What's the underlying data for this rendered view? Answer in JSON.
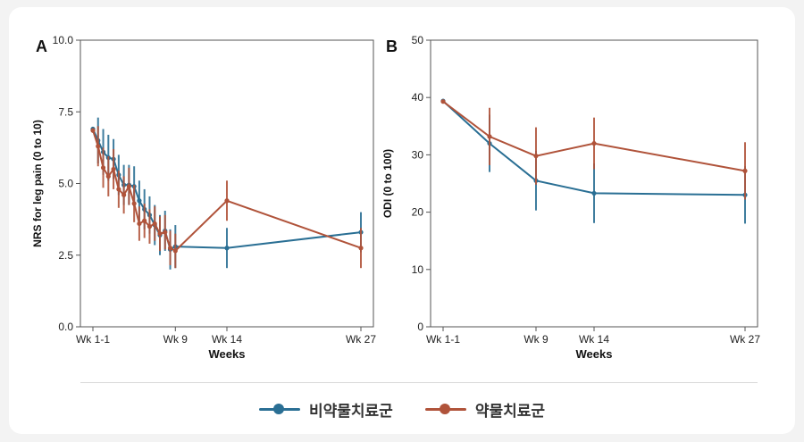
{
  "colors": {
    "nonDrug": "#2a6f94",
    "drug": "#b0533a",
    "axis": "#555555",
    "text": "#222222"
  },
  "legend": [
    {
      "name": "비약물치료군",
      "color": "#2a6f94"
    },
    {
      "name": "약물치료군",
      "color": "#b0533a"
    }
  ],
  "chart_data": [
    {
      "panel": "A",
      "type": "line",
      "xlabel": "Weeks",
      "ylabel": "NRS for leg pain (0 to 10)",
      "ylim": [
        0,
        10
      ],
      "yticks": [
        0,
        2.5,
        5,
        7.5,
        10
      ],
      "ytick_labels": [
        "0.0",
        "2.5",
        "5.0",
        "7.5",
        "10.0"
      ],
      "xlim": [
        1,
        27
      ],
      "xticks": [
        1,
        9,
        14,
        27
      ],
      "xtick_labels": [
        "Wk 1-1",
        "Wk 9",
        "Wk 14",
        "Wk 27"
      ],
      "series": [
        {
          "name": "비약물치료군",
          "color": "#2a6f94",
          "x": [
            1,
            1.5,
            2,
            2.5,
            3,
            3.5,
            4,
            4.5,
            5,
            5.5,
            6,
            6.5,
            7,
            7.5,
            8,
            8.5,
            9,
            14,
            27
          ],
          "y": [
            6.9,
            6.5,
            6.1,
            5.9,
            5.85,
            5.3,
            4.95,
            4.95,
            4.9,
            4.4,
            4.1,
            3.9,
            3.55,
            3.2,
            3.35,
            2.7,
            2.8,
            2.75,
            3.3
          ],
          "err": [
            0.08,
            0.8,
            0.8,
            0.8,
            0.7,
            0.7,
            0.7,
            0.7,
            0.7,
            0.7,
            0.7,
            0.65,
            0.7,
            0.7,
            0.7,
            0.7,
            0.75,
            0.7,
            0.7
          ]
        },
        {
          "name": "약물치료군",
          "color": "#b0533a",
          "x": [
            1,
            1.5,
            2,
            2.5,
            3,
            3.5,
            4,
            4.5,
            5,
            5.5,
            6,
            6.5,
            7,
            7.5,
            8,
            8.5,
            9,
            14,
            27
          ],
          "y": [
            6.85,
            6.3,
            5.55,
            5.25,
            5.5,
            4.8,
            4.6,
            4.9,
            4.3,
            3.6,
            3.7,
            3.5,
            3.6,
            3.25,
            3.3,
            2.75,
            2.65,
            4.4,
            2.75
          ],
          "err": [
            0.08,
            0.7,
            0.7,
            0.7,
            0.7,
            0.65,
            0.65,
            0.65,
            0.65,
            0.6,
            0.6,
            0.6,
            0.6,
            0.6,
            0.6,
            0.6,
            0.6,
            0.7,
            0.7
          ]
        }
      ]
    },
    {
      "panel": "B",
      "type": "line",
      "xlabel": "Weeks",
      "ylabel": "ODI (0 to 100)",
      "ylim": [
        0,
        50
      ],
      "yticks": [
        0,
        10,
        20,
        30,
        40,
        50
      ],
      "ytick_labels": [
        "0",
        "10",
        "20",
        "30",
        "40",
        "50"
      ],
      "xlim": [
        1,
        27
      ],
      "xticks": [
        1,
        9,
        14,
        27
      ],
      "xtick_labels": [
        "Wk 1-1",
        "Wk 9",
        "Wk 14",
        "Wk 27"
      ],
      "series": [
        {
          "name": "비약물치료군",
          "color": "#2a6f94",
          "x": [
            1,
            5,
            9,
            14,
            27
          ],
          "y": [
            39.4,
            32.0,
            25.5,
            23.3,
            23.0
          ],
          "err": [
            0.3,
            5.0,
            5.2,
            5.2,
            5.0
          ]
        },
        {
          "name": "약물치료군",
          "color": "#b0533a",
          "x": [
            1,
            5,
            9,
            14,
            27
          ],
          "y": [
            39.3,
            33.2,
            29.8,
            32.0,
            27.2
          ],
          "err": [
            0.3,
            5.0,
            5.0,
            4.5,
            5.0
          ]
        }
      ]
    }
  ]
}
